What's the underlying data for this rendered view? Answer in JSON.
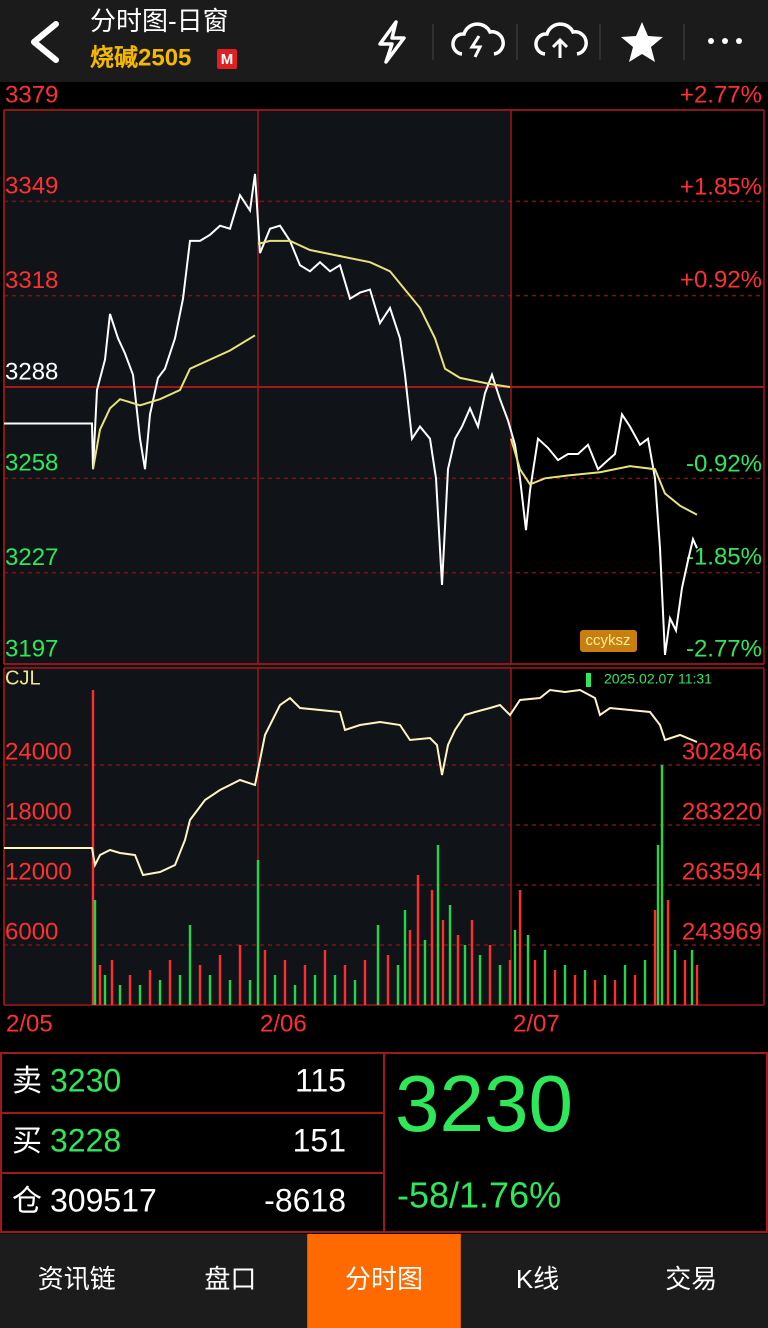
{
  "header": {
    "title": "分时图-日窗",
    "symbol": "烧碱2505",
    "badge": "M"
  },
  "chart_data": [
    {
      "type": "line",
      "annotation": "ccyksz",
      "grid": true,
      "xlim": [
        0,
        760
      ],
      "xticks": [
        {
          "value": 0,
          "label": "2/05"
        },
        {
          "value": 254,
          "label": "2/06"
        },
        {
          "value": 507,
          "label": "2/07"
        }
      ],
      "ylim": [
        3197,
        3379
      ],
      "yticks": [
        3379,
        3349,
        3318,
        3288,
        3258,
        3227,
        3197
      ],
      "y2lim": [
        -2.77,
        2.77
      ],
      "y2ticks": [
        {
          "value": 2.77,
          "label": "+2.77%"
        },
        {
          "value": 1.85,
          "label": "+1.85%"
        },
        {
          "value": 0.92,
          "label": "+0.92%"
        },
        {
          "value": -0.92,
          "label": "-0.92%"
        },
        {
          "value": -1.85,
          "label": "-1.85%"
        },
        {
          "value": -2.77,
          "label": "-2.77%"
        }
      ],
      "series": [
        {
          "color": "#ffffff",
          "x": [
            0,
            88,
            89,
            93,
            101,
            106,
            114,
            121,
            129,
            136,
            141,
            146,
            154,
            161,
            171,
            179,
            186,
            196,
            206,
            216,
            226,
            236,
            246,
            251,
            256,
            266,
            276,
            286,
            296,
            306,
            316,
            326,
            336,
            346,
            356,
            366,
            376,
            386,
            396,
            401,
            408,
            416,
            426,
            432,
            438,
            444,
            451,
            458,
            466,
            474,
            481,
            488,
            496,
            504,
            511,
            516,
            522,
            526,
            534,
            544,
            554,
            564,
            574,
            584,
            594,
            604,
            611,
            618,
            626,
            636,
            644,
            651,
            656,
            661,
            666,
            672,
            678,
            684,
            689,
            693
          ],
          "values": [
            3276,
            3276,
            3261,
            3287,
            3297,
            3312,
            3304,
            3299,
            3292,
            3271,
            3261,
            3279,
            3291,
            3294,
            3304,
            3317,
            3336,
            3336,
            3338,
            3341,
            3340,
            3351,
            3346,
            3358,
            3332,
            3340,
            3341,
            3336,
            3328,
            3326,
            3329,
            3326,
            3328,
            3317,
            3319,
            3320,
            3309,
            3314,
            3304,
            3292,
            3271,
            3275,
            3271,
            3258,
            3223,
            3261,
            3271,
            3275,
            3281,
            3275,
            3286,
            3292,
            3284,
            3277,
            3269,
            3258,
            3241,
            3254,
            3271,
            3268,
            3264,
            3266,
            3266,
            3269,
            3261,
            3264,
            3266,
            3279,
            3275,
            3269,
            3271,
            3258,
            3235,
            3200,
            3212,
            3208,
            3222,
            3231,
            3238,
            3235
          ]
        },
        {
          "color": "#e8e27a",
          "x": [
            89,
            96,
            106,
            116,
            136,
            156,
            176,
            186,
            206,
            226,
            251,
            null,
            254,
            266,
            286,
            306,
            336,
            366,
            386,
            401,
            416,
            431,
            441,
            456,
            486,
            506,
            null,
            507,
            516,
            526,
            541,
            566,
            596,
            626,
            651,
            661,
            676,
            693
          ],
          "values": [
            3261,
            3274,
            3281,
            3284,
            3282,
            3284,
            3287,
            3294,
            3297,
            3300,
            3305,
            null,
            3335,
            3336,
            3336,
            3333,
            3331,
            3329,
            3326,
            3320,
            3314,
            3304,
            3294,
            3291,
            3289,
            3288,
            null,
            3271,
            3261,
            3256,
            3258,
            3259,
            3260,
            3262,
            3261,
            3253,
            3249,
            3246
          ]
        }
      ]
    },
    {
      "type": "bar",
      "title": "CJL",
      "date_label": "2025.02.07 11:31",
      "grid": true,
      "xlim": [
        0,
        760
      ],
      "ylim": [
        0,
        33700
      ],
      "yticks": [
        24000,
        18000,
        12000,
        6000
      ],
      "y2lim": [
        224343,
        334575
      ],
      "y2ticks": [
        302846,
        283220,
        263594,
        243969
      ],
      "series": [
        {
          "x": [
            89,
            91,
            96,
            101,
            108,
            116,
            126,
            136,
            146,
            156,
            166,
            176,
            186,
            196,
            206,
            216,
            226,
            236,
            246,
            254,
            261,
            271,
            281,
            291,
            301,
            311,
            321,
            331,
            341,
            351,
            361,
            374,
            384,
            394,
            401,
            406,
            414,
            421,
            428,
            434,
            439,
            446,
            454,
            461,
            468,
            476,
            486,
            496,
            506,
            511,
            516,
            524,
            531,
            541,
            551,
            561,
            571,
            581,
            591,
            601,
            611,
            621,
            631,
            641,
            651,
            654,
            658,
            664,
            671,
            681,
            688,
            693
          ],
          "values": [
            31500,
            10500,
            4000,
            3000,
            4500,
            2000,
            3000,
            2000,
            3500,
            2500,
            4500,
            3000,
            8000,
            4000,
            3000,
            5000,
            2500,
            6000,
            2500,
            14500,
            5500,
            3000,
            4500,
            2000,
            4000,
            3000,
            5500,
            3000,
            4000,
            2500,
            4500,
            8000,
            5000,
            4000,
            9500,
            7500,
            13000,
            6500,
            11500,
            16000,
            8500,
            10000,
            7000,
            6000,
            8500,
            5000,
            6000,
            4000,
            4500,
            7500,
            11500,
            7000,
            4500,
            5500,
            3500,
            4000,
            3000,
            3500,
            2500,
            3000,
            2500,
            4000,
            3000,
            4500,
            9500,
            16000,
            24000,
            10500,
            5500,
            4500,
            5500,
            4000
          ],
          "colors": [
            "#ff2d2d",
            "#22d64a",
            "#ff2d2d",
            "#22d64a",
            "#ff2d2d",
            "#22d64a",
            "#ff2d2d",
            "#22d64a",
            "#ff2d2d",
            "#22d64a",
            "#ff2d2d",
            "#22d64a",
            "#22d64a",
            "#ff2d2d",
            "#22d64a",
            "#ff2d2d",
            "#22d64a",
            "#ff2d2d",
            "#22d64a",
            "#22d64a",
            "#ff2d2d",
            "#22d64a",
            "#ff2d2d",
            "#22d64a",
            "#ff2d2d",
            "#22d64a",
            "#ff2d2d",
            "#22d64a",
            "#ff2d2d",
            "#22d64a",
            "#ff2d2d",
            "#22d64a",
            "#ff2d2d",
            "#22d64a",
            "#22d64a",
            "#ff2d2d",
            "#ff2d2d",
            "#22d64a",
            "#ff2d2d",
            "#22d64a",
            "#ff2d2d",
            "#22d64a",
            "#ff2d2d",
            "#22d64a",
            "#ff2d2d",
            "#22d64a",
            "#ff2d2d",
            "#22d64a",
            "#ff2d2d",
            "#22d64a",
            "#ff2d2d",
            "#22d64a",
            "#ff2d2d",
            "#22d64a",
            "#ff2d2d",
            "#22d64a",
            "#ff2d2d",
            "#22d64a",
            "#ff2d2d",
            "#22d64a",
            "#ff2d2d",
            "#22d64a",
            "#ff2d2d",
            "#22d64a",
            "#ff2d2d",
            "#22d64a",
            "#22d64a",
            "#ff2d2d",
            "#22d64a",
            "#ff2d2d",
            "#22d64a",
            "#ff2d2d"
          ]
        },
        {
          "type": "line",
          "axis": "y2",
          "color": "#fff3c4",
          "x": [
            0,
            88,
            91,
            96,
            106,
            116,
            131,
            139,
            156,
            171,
            181,
            186,
            201,
            216,
            236,
            251,
            256,
            261,
            276,
            286,
            296,
            316,
            336,
            341,
            356,
            376,
            396,
            406,
            426,
            433,
            438,
            444,
            451,
            461,
            471,
            486,
            496,
            506,
            516,
            536,
            546,
            561,
            576,
            591,
            596,
            606,
            626,
            646,
            656,
            661,
            676,
            693
          ],
          "values": [
            275697,
            275697,
            270136,
            273407,
            275042,
            274061,
            273407,
            266865,
            267846,
            270136,
            278313,
            284856,
            291398,
            294669,
            297940,
            296304,
            304482,
            312659,
            322472,
            324762,
            321491,
            320837,
            320182,
            314295,
            315930,
            316911,
            315930,
            311024,
            311678,
            309388,
            299575,
            309388,
            314295,
            319202,
            320182,
            321491,
            322472,
            319202,
            324108,
            324762,
            327379,
            326724,
            327379,
            324762,
            319202,
            321491,
            320837,
            320182,
            315930,
            311024,
            312659,
            310369
          ]
        }
      ]
    }
  ],
  "quote": {
    "rows": [
      {
        "label": "卖",
        "price": 3230,
        "volume": 115
      },
      {
        "label": "买",
        "price": 3228,
        "volume": 151
      },
      {
        "label": "仓",
        "price": 309517,
        "volume": -8618
      }
    ],
    "last": 3230,
    "change": "-58/1.76%"
  },
  "tabs": {
    "items": [
      "资讯链",
      "盘口",
      "分时图",
      "K线",
      "交易"
    ],
    "active": 2
  }
}
